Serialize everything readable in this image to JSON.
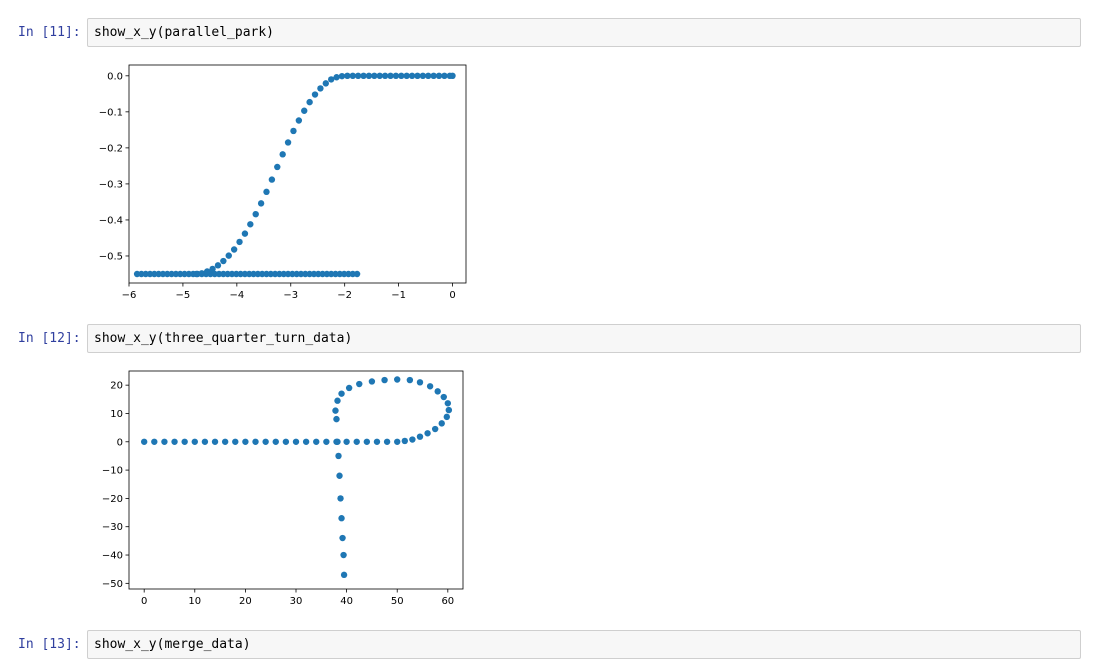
{
  "cells": [
    {
      "prompt": "In [11]:",
      "code": "show_x_y(parallel_park)"
    },
    {
      "prompt": "In [12]:",
      "code": "show_x_y(three_quarter_turn_data)"
    },
    {
      "prompt": "In [13]:",
      "code": "show_x_y(merge_data)"
    }
  ],
  "colors": {
    "marker": "#1f77b4"
  },
  "chart_data": [
    {
      "type": "scatter",
      "xlim": [
        -6.0,
        0.25
      ],
      "ylim": [
        -0.575,
        0.03
      ],
      "xticks": [
        -6,
        -5,
        -4,
        -3,
        -2,
        -1,
        0
      ],
      "xtick_labels": [
        "−6",
        "−5",
        "−4",
        "−3",
        "−2",
        "−1",
        "0"
      ],
      "yticks": [
        0.0,
        -0.1,
        -0.2,
        -0.3,
        -0.4,
        -0.5
      ],
      "ytick_labels": [
        "0.0",
        "−0.1",
        "−0.2",
        "−0.3",
        "−0.4",
        "−0.5"
      ],
      "grid": false,
      "series": [
        {
          "x": [
            -5.85,
            -5.77,
            -5.69,
            -5.61,
            -5.53,
            -5.45,
            -5.37,
            -5.29,
            -5.21,
            -5.13,
            -5.05,
            -4.97,
            -4.89,
            -4.81,
            -4.73,
            -4.65,
            -4.57,
            -4.49,
            -4.41,
            -4.33,
            -4.25,
            -4.17,
            -4.09,
            -4.01,
            -3.93,
            -3.85,
            -3.77,
            -3.69,
            -3.61,
            -3.53,
            -3.45,
            -3.37,
            -3.29,
            -3.21,
            -3.13,
            -3.05,
            -2.97,
            -2.89,
            -2.81,
            -2.73,
            -2.65,
            -2.57,
            -2.49,
            -2.41,
            -2.33,
            -2.25,
            -2.17,
            -2.09,
            -2.01,
            -1.93,
            -1.85,
            -1.77,
            -4.75,
            -4.65,
            -4.55,
            -4.45,
            -4.35,
            -4.25,
            -4.15,
            -4.05,
            -3.95,
            -3.85,
            -3.75,
            -3.65,
            -3.55,
            -3.45,
            -3.35,
            -3.25,
            -3.15,
            -3.05,
            -2.95,
            -2.85,
            -2.75,
            -2.65,
            -2.55,
            -2.45,
            -2.35,
            -2.25,
            -2.15,
            -2.05,
            -1.95,
            -1.85,
            -1.75,
            -1.65,
            -1.55,
            -1.45,
            -1.35,
            -1.25,
            -1.15,
            -1.05,
            -0.95,
            -0.85,
            -0.75,
            -0.65,
            -0.55,
            -0.45,
            -0.35,
            -0.25,
            -0.15,
            -0.05,
            0.0
          ],
          "y": [
            -0.55,
            -0.55,
            -0.55,
            -0.55,
            -0.55,
            -0.55,
            -0.55,
            -0.55,
            -0.55,
            -0.55,
            -0.55,
            -0.55,
            -0.55,
            -0.55,
            -0.55,
            -0.55,
            -0.55,
            -0.55,
            -0.55,
            -0.55,
            -0.55,
            -0.55,
            -0.55,
            -0.55,
            -0.55,
            -0.55,
            -0.55,
            -0.55,
            -0.55,
            -0.55,
            -0.55,
            -0.55,
            -0.55,
            -0.55,
            -0.55,
            -0.55,
            -0.55,
            -0.55,
            -0.55,
            -0.55,
            -0.55,
            -0.55,
            -0.55,
            -0.55,
            -0.55,
            -0.55,
            -0.55,
            -0.55,
            -0.55,
            -0.55,
            -0.55,
            -0.55,
            -0.55,
            -0.548,
            -0.543,
            -0.536,
            -0.526,
            -0.514,
            -0.499,
            -0.482,
            -0.461,
            -0.438,
            -0.412,
            -0.384,
            -0.354,
            -0.322,
            -0.288,
            -0.253,
            -0.218,
            -0.185,
            -0.153,
            -0.124,
            -0.097,
            -0.073,
            -0.052,
            -0.035,
            -0.021,
            -0.01,
            -0.004,
            -0.001,
            0.0,
            0.0,
            0.0,
            0.0,
            0.0,
            0.0,
            0.0,
            0.0,
            0.0,
            0.0,
            0.0,
            0.0,
            0.0,
            0.0,
            0.0,
            0.0,
            0.0,
            0.0,
            0.0,
            0.0,
            0.0
          ]
        }
      ]
    },
    {
      "type": "scatter",
      "xlim": [
        -3.0,
        63.0
      ],
      "ylim": [
        -52.0,
        25.0
      ],
      "xticks": [
        0,
        10,
        20,
        30,
        40,
        50,
        60
      ],
      "xtick_labels": [
        "0",
        "10",
        "20",
        "30",
        "40",
        "50",
        "60"
      ],
      "yticks": [
        20,
        10,
        0,
        -10,
        -20,
        -30,
        -40,
        -50
      ],
      "ytick_labels": [
        "20",
        "10",
        "0",
        "−10",
        "−20",
        "−30",
        "−40",
        "−50"
      ],
      "grid": false,
      "series": [
        {
          "x": [
            0,
            2,
            4,
            6,
            8,
            10,
            12,
            14,
            16,
            18,
            20,
            22,
            24,
            26,
            28,
            30,
            32,
            34,
            36,
            38,
            40,
            42,
            44,
            46,
            48,
            50,
            51.5,
            53,
            54.5,
            56,
            57.5,
            58.8,
            59.8,
            60.2,
            60,
            59.2,
            58,
            56.5,
            54.5,
            52.5,
            50,
            47.5,
            45,
            42.5,
            40.5,
            39,
            38.2,
            37.8,
            38,
            38.2,
            38.4,
            38.6,
            38.8,
            39,
            39.2,
            39.4,
            39.5
          ],
          "y": [
            0,
            0,
            0,
            0,
            0,
            0,
            0,
            0,
            0,
            0,
            0,
            0,
            0,
            0,
            0,
            0,
            0,
            0,
            0,
            0,
            0,
            0,
            0,
            0,
            0,
            0,
            0.3,
            0.8,
            1.8,
            3.0,
            4.5,
            6.5,
            8.8,
            11.2,
            13.6,
            15.8,
            17.8,
            19.6,
            21,
            21.8,
            22,
            21.8,
            21.3,
            20.4,
            19,
            17,
            14.5,
            11,
            8,
            0,
            -5,
            -12,
            -20,
            -27,
            -34,
            -40,
            -47
          ]
        }
      ]
    }
  ]
}
